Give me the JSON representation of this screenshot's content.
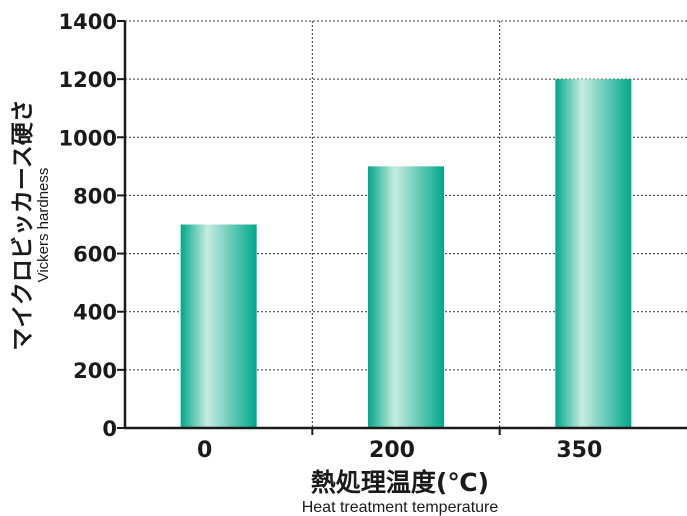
{
  "chart_data": {
    "type": "bar",
    "categories": [
      "0",
      "200",
      "350"
    ],
    "series": [
      {
        "values": [
          700,
          900,
          1200
        ]
      }
    ],
    "xlabel": "熱処理温度(℃)",
    "xlabel_en": "Heat treatment temperature",
    "ylabel": "マイクロビッカース硬さ",
    "ylabel_en": "Vickers hardness",
    "ylim": [
      0,
      1400
    ],
    "yticks": [
      0,
      200,
      400,
      600,
      800,
      1000,
      1200,
      1400
    ],
    "grid": true,
    "bar_color": "#00a88a",
    "bar_highlight": "#c8ebe1"
  }
}
